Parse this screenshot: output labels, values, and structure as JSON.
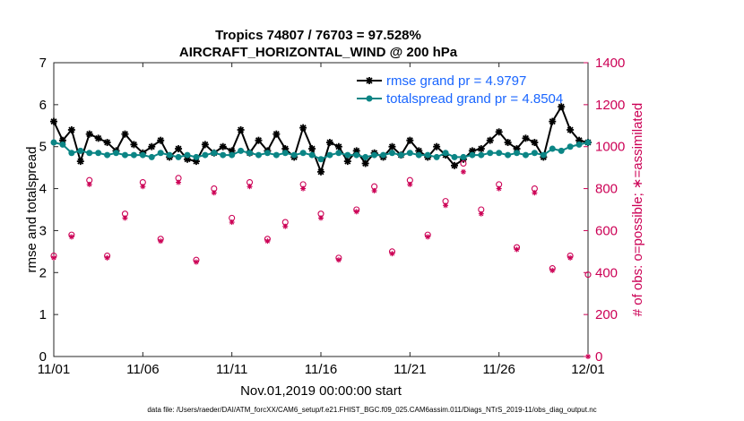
{
  "chart_data": {
    "type": "line",
    "title": "Tropics 74807 / 76703 = 97.528%",
    "subtitle": "AIRCRAFT_HORIZONTAL_WIND @ 200 hPa",
    "xlabel": "Nov.01,2019 00:00:00 start",
    "ylabel": "rmse and totalspread",
    "ylabel_right": "# of obs: o=possible; ∗=assimilated",
    "xlim": [
      0,
      30
    ],
    "ylim": [
      0,
      7
    ],
    "ylim_right": [
      0,
      1400
    ],
    "x_ticks": [
      0,
      5,
      10,
      15,
      20,
      25,
      30
    ],
    "x_tick_labels": [
      "11/01",
      "11/06",
      "11/11",
      "11/16",
      "11/21",
      "11/26",
      "12/01"
    ],
    "y_ticks": [
      0,
      1,
      2,
      3,
      4,
      5,
      6,
      7
    ],
    "y_tick_labels": [
      "0",
      "1",
      "2",
      "3",
      "4",
      "5",
      "6",
      "7"
    ],
    "y_ticks_right": [
      0,
      200,
      400,
      600,
      800,
      1000,
      1200,
      1400
    ],
    "y_tick_labels_right": [
      "0",
      "200",
      "400",
      "600",
      "800",
      "1000",
      "1200",
      "1400"
    ],
    "series": [
      {
        "name": "rmse grand pr = 4.9797",
        "color": "#000000",
        "marker": "asterisk",
        "x": [
          0,
          0.5,
          1,
          1.5,
          2,
          2.5,
          3,
          3.5,
          4,
          4.5,
          5,
          5.5,
          6,
          6.5,
          7,
          7.5,
          8,
          8.5,
          9,
          9.5,
          10,
          10.5,
          11,
          11.5,
          12,
          12.5,
          13,
          13.5,
          14,
          14.5,
          15,
          15.5,
          16,
          16.5,
          17,
          17.5,
          18,
          18.5,
          19,
          19.5,
          20,
          20.5,
          21,
          21.5,
          22,
          22.5,
          23,
          23.5,
          24,
          24.5,
          25,
          25.5,
          26,
          26.5,
          27,
          27.5,
          28,
          28.5,
          29,
          29.5,
          30
        ],
        "values": [
          5.6,
          5.15,
          5.4,
          4.65,
          5.3,
          5.2,
          5.1,
          4.9,
          5.3,
          5.05,
          4.85,
          5.0,
          5.15,
          4.75,
          4.95,
          4.7,
          4.65,
          5.05,
          4.85,
          5.0,
          4.9,
          5.4,
          4.85,
          5.15,
          4.9,
          5.3,
          4.95,
          4.75,
          5.45,
          4.95,
          4.4,
          5.1,
          5.0,
          4.65,
          4.9,
          4.6,
          4.85,
          4.75,
          5.0,
          4.8,
          5.15,
          4.9,
          4.75,
          5.0,
          4.8,
          4.55,
          4.7,
          4.9,
          4.95,
          5.15,
          5.35,
          5.1,
          4.95,
          5.2,
          5.1,
          4.75,
          5.6,
          5.95,
          5.4,
          5.15,
          5.1
        ]
      },
      {
        "name": "totalspread grand pr = 4.8504",
        "color": "#0b8585",
        "marker": "circle",
        "x": [
          0,
          0.5,
          1,
          1.5,
          2,
          2.5,
          3,
          3.5,
          4,
          4.5,
          5,
          5.5,
          6,
          6.5,
          7,
          7.5,
          8,
          8.5,
          9,
          9.5,
          10,
          10.5,
          11,
          11.5,
          12,
          12.5,
          13,
          13.5,
          14,
          14.5,
          15,
          15.5,
          16,
          16.5,
          17,
          17.5,
          18,
          18.5,
          19,
          19.5,
          20,
          20.5,
          21,
          21.5,
          22,
          22.5,
          23,
          23.5,
          24,
          24.5,
          25,
          25.5,
          26,
          26.5,
          27,
          27.5,
          28,
          28.5,
          29,
          29.5,
          30
        ],
        "values": [
          5.1,
          5.05,
          4.85,
          4.9,
          4.85,
          4.85,
          4.8,
          4.85,
          4.8,
          4.8,
          4.8,
          4.75,
          4.85,
          4.8,
          4.75,
          4.8,
          4.75,
          4.8,
          4.85,
          4.8,
          4.8,
          4.9,
          4.85,
          4.8,
          4.85,
          4.8,
          4.85,
          4.8,
          4.85,
          4.8,
          4.7,
          4.8,
          4.85,
          4.8,
          4.8,
          4.75,
          4.8,
          4.8,
          4.85,
          4.8,
          4.85,
          4.8,
          4.8,
          4.75,
          4.85,
          4.75,
          4.75,
          4.8,
          4.8,
          4.85,
          4.85,
          4.8,
          4.85,
          4.8,
          4.85,
          4.8,
          4.95,
          4.9,
          5.0,
          5.05,
          5.1
        ]
      },
      {
        "name": "# of obs possible",
        "color": "#cc0055",
        "marker": "open-circle",
        "x": [
          0,
          1,
          2,
          3,
          4,
          5,
          6,
          7,
          8,
          9,
          10,
          11,
          12,
          13,
          14,
          15,
          16,
          17,
          18,
          19,
          20,
          21,
          22,
          23,
          24,
          25,
          26,
          27,
          28,
          29,
          30
        ],
        "values": [
          480,
          580,
          840,
          480,
          680,
          830,
          560,
          850,
          460,
          800,
          660,
          830,
          560,
          640,
          820,
          680,
          470,
          700,
          810,
          500,
          840,
          580,
          740,
          920,
          700,
          820,
          520,
          800,
          420,
          480,
          390
        ]
      },
      {
        "name": "# of obs assimilated",
        "color": "#cc0055",
        "marker": "asterisk",
        "x": [
          0,
          1,
          2,
          3,
          4,
          5,
          6,
          7,
          8,
          9,
          10,
          11,
          12,
          13,
          14,
          15,
          16,
          17,
          18,
          19,
          20,
          21,
          22,
          23,
          24,
          25,
          26,
          27,
          28,
          29,
          30
        ],
        "values": [
          470,
          570,
          820,
          470,
          660,
          810,
          550,
          830,
          450,
          780,
          640,
          810,
          550,
          620,
          800,
          660,
          460,
          690,
          790,
          490,
          820,
          570,
          720,
          880,
          680,
          800,
          510,
          780,
          410,
          470,
          0
        ]
      }
    ]
  },
  "footer_text": "data file: /Users/raeder/DAI/ATM_forcXX/CAM6_setup/f.e21.FHIST_BGC.f09_025.CAM6assim.011/Diags_NTrS_2019-11/obs_diag_output.nc"
}
